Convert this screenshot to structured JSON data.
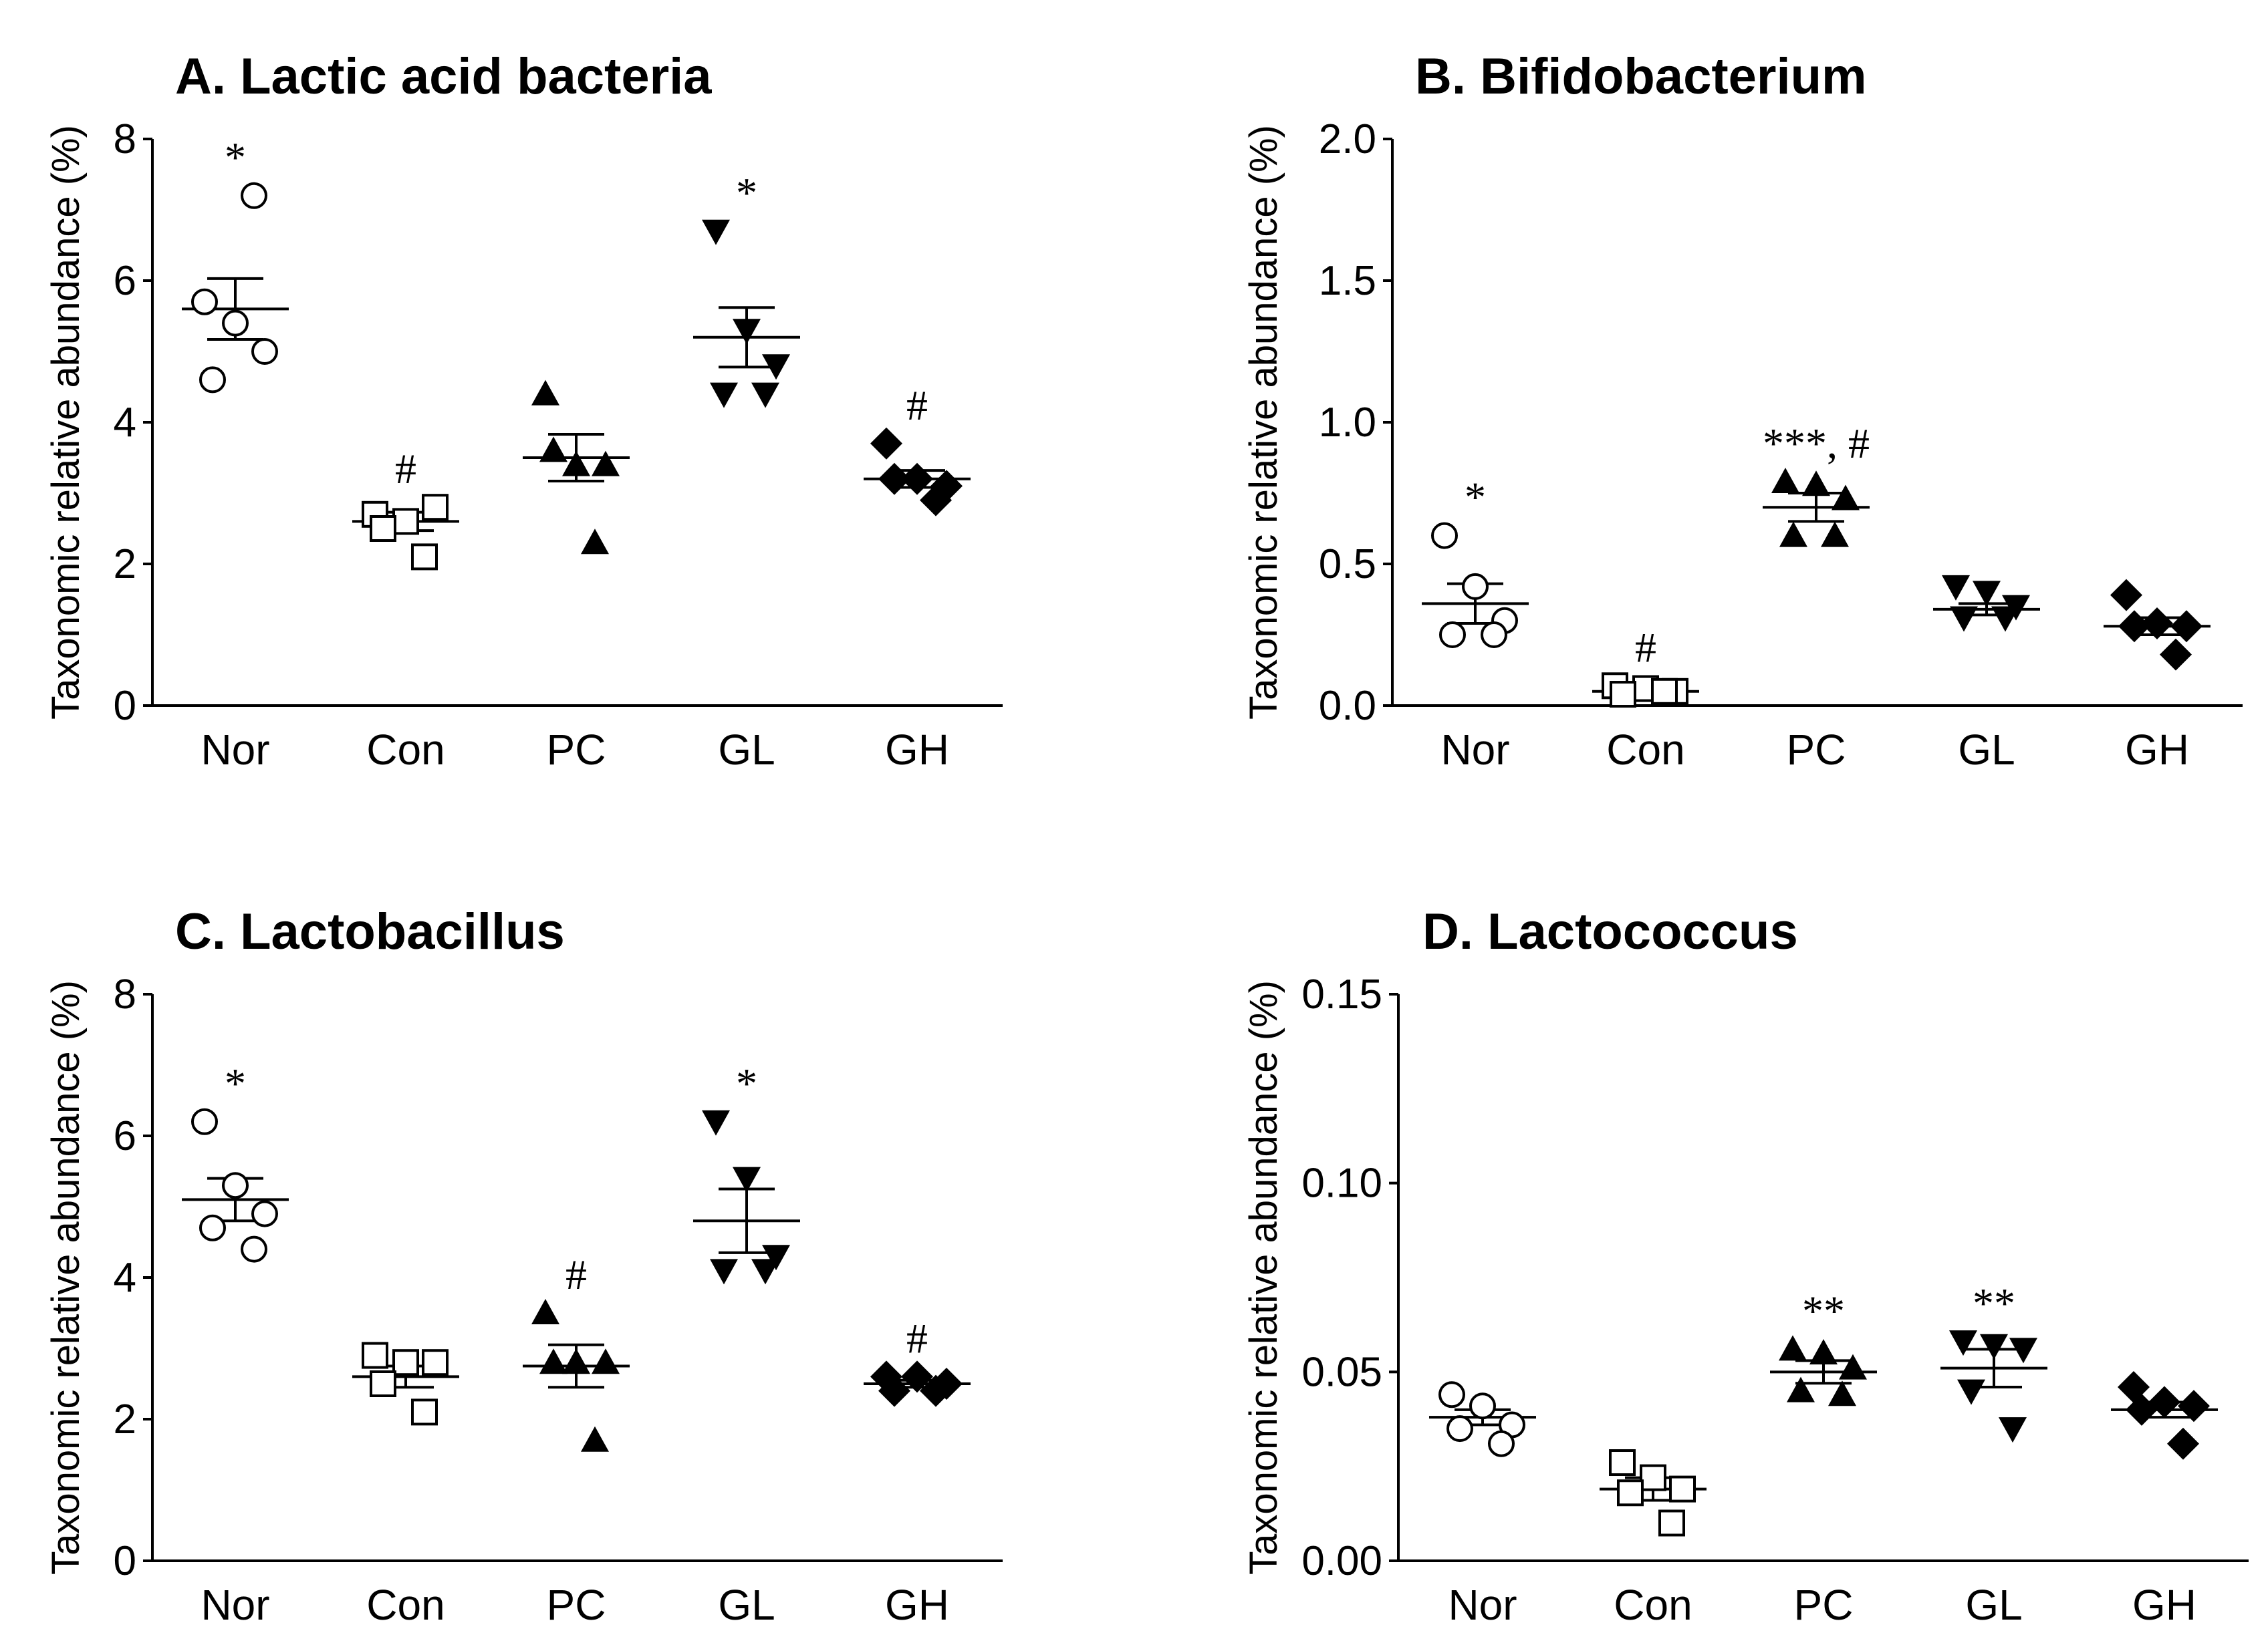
{
  "chart_data": [
    {
      "type": "scatter",
      "title": "A. Lactic acid bacteria",
      "ylabel": "Taxonomic relative abundance (%)",
      "categories": [
        "Nor",
        "Con",
        "PC",
        "GL",
        "GH"
      ],
      "ylim": [
        0,
        8
      ],
      "yticks": [
        "0",
        "2",
        "4",
        "6",
        "8"
      ],
      "groups": [
        {
          "name": "Nor",
          "marker": "circle-open",
          "points": [
            5.7,
            5.4,
            5.0,
            4.6,
            7.2
          ],
          "mean": 5.6,
          "sem": 0.43,
          "annotation": "*"
        },
        {
          "name": "Con",
          "marker": "square-open",
          "points": [
            2.7,
            2.6,
            2.8,
            2.5,
            2.1
          ],
          "mean": 2.6,
          "sem": 0.13,
          "annotation": "#"
        },
        {
          "name": "PC",
          "marker": "triangle-up-filled",
          "points": [
            4.4,
            3.4,
            3.4,
            3.6,
            2.3
          ],
          "mean": 3.5,
          "sem": 0.33,
          "annotation": ""
        },
        {
          "name": "GL",
          "marker": "triangle-down-filled",
          "points": [
            6.7,
            5.3,
            4.8,
            4.4,
            4.4
          ],
          "mean": 5.2,
          "sem": 0.42,
          "annotation": "*"
        },
        {
          "name": "GH",
          "marker": "diamond-filled",
          "points": [
            3.7,
            3.2,
            3.1,
            3.2,
            2.9
          ],
          "mean": 3.2,
          "sem": 0.12,
          "annotation": "#"
        }
      ]
    },
    {
      "type": "scatter",
      "title": "B. Bifidobacterium",
      "ylabel": "Taxonomic relative abundance (%)",
      "categories": [
        "Nor",
        "Con",
        "PC",
        "GL",
        "GH"
      ],
      "ylim": [
        0,
        2.0
      ],
      "yticks": [
        "0.0",
        "0.5",
        "1.0",
        "1.5",
        "2.0"
      ],
      "groups": [
        {
          "name": "Nor",
          "marker": "circle-open",
          "points": [
            0.6,
            0.42,
            0.3,
            0.25,
            0.25
          ],
          "mean": 0.36,
          "sem": 0.07,
          "annotation": "*"
        },
        {
          "name": "Con",
          "marker": "square-open",
          "points": [
            0.07,
            0.06,
            0.05,
            0.04,
            0.05
          ],
          "mean": 0.05,
          "sem": 0.01,
          "annotation": "#"
        },
        {
          "name": "PC",
          "marker": "triangle-up-filled",
          "points": [
            0.79,
            0.78,
            0.73,
            0.6,
            0.6
          ],
          "mean": 0.7,
          "sem": 0.05,
          "annotation": "***, #"
        },
        {
          "name": "GL",
          "marker": "triangle-down-filled",
          "points": [
            0.42,
            0.4,
            0.35,
            0.31,
            0.31
          ],
          "mean": 0.34,
          "sem": 0.02,
          "annotation": ""
        },
        {
          "name": "GH",
          "marker": "diamond-filled",
          "points": [
            0.39,
            0.29,
            0.28,
            0.28,
            0.18
          ],
          "mean": 0.28,
          "sem": 0.03,
          "annotation": ""
        }
      ]
    },
    {
      "type": "scatter",
      "title": "C. Lactobacillus",
      "ylabel": "Taxonomic relative abundance (%)",
      "categories": [
        "Nor",
        "Con",
        "PC",
        "GL",
        "GH"
      ],
      "ylim": [
        0,
        8
      ],
      "yticks": [
        "0",
        "2",
        "4",
        "6",
        "8"
      ],
      "groups": [
        {
          "name": "Nor",
          "marker": "circle-open",
          "points": [
            6.2,
            5.3,
            4.9,
            4.7,
            4.4
          ],
          "mean": 5.1,
          "sem": 0.3,
          "annotation": "*"
        },
        {
          "name": "Con",
          "marker": "square-open",
          "points": [
            2.9,
            2.8,
            2.8,
            2.5,
            2.1
          ],
          "mean": 2.6,
          "sem": 0.15,
          "annotation": ""
        },
        {
          "name": "PC",
          "marker": "triangle-up-filled",
          "points": [
            3.5,
            2.8,
            2.8,
            2.8,
            1.7
          ],
          "mean": 2.75,
          "sem": 0.3,
          "annotation": "#"
        },
        {
          "name": "GL",
          "marker": "triangle-down-filled",
          "points": [
            6.2,
            5.4,
            4.3,
            4.1,
            4.1
          ],
          "mean": 4.8,
          "sem": 0.45,
          "annotation": "*"
        },
        {
          "name": "GH",
          "marker": "diamond-filled",
          "points": [
            2.6,
            2.6,
            2.5,
            2.4,
            2.4
          ],
          "mean": 2.5,
          "sem": 0.05,
          "annotation": "#"
        }
      ]
    },
    {
      "type": "scatter",
      "title": "D. Lactococcus",
      "ylabel": "Taxonomic relative abundance (%)",
      "categories": [
        "Nor",
        "Con",
        "PC",
        "GL",
        "GH"
      ],
      "ylim": [
        0,
        0.15
      ],
      "yticks": [
        "0.00",
        "0.05",
        "0.10",
        "0.15"
      ],
      "groups": [
        {
          "name": "Nor",
          "marker": "circle-open",
          "points": [
            0.044,
            0.041,
            0.036,
            0.035,
            0.031
          ],
          "mean": 0.038,
          "sem": 0.002,
          "annotation": ""
        },
        {
          "name": "Con",
          "marker": "square-open",
          "points": [
            0.026,
            0.022,
            0.019,
            0.018,
            0.01
          ],
          "mean": 0.019,
          "sem": 0.003,
          "annotation": ""
        },
        {
          "name": "PC",
          "marker": "triangle-up-filled",
          "points": [
            0.056,
            0.055,
            0.051,
            0.045,
            0.044
          ],
          "mean": 0.05,
          "sem": 0.003,
          "annotation": "**"
        },
        {
          "name": "GL",
          "marker": "triangle-down-filled",
          "points": [
            0.058,
            0.057,
            0.056,
            0.045,
            0.035
          ],
          "mean": 0.051,
          "sem": 0.005,
          "annotation": "**"
        },
        {
          "name": "GH",
          "marker": "diamond-filled",
          "points": [
            0.046,
            0.042,
            0.041,
            0.04,
            0.031
          ],
          "mean": 0.04,
          "sem": 0.002,
          "annotation": ""
        }
      ]
    }
  ]
}
